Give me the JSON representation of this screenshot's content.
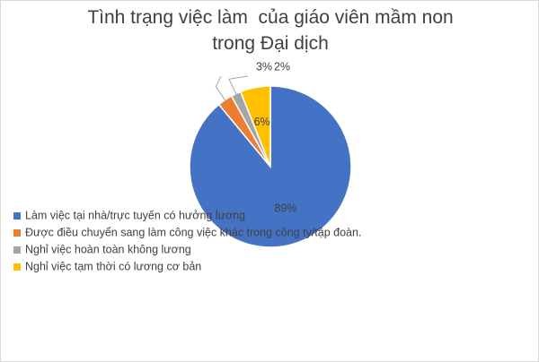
{
  "chart_data": {
    "type": "pie",
    "title": "Tình trạng việc làm  của giáo viên mầm non trong Đại dịch",
    "categories": [
      "Làm việc tại nhà/trực tuyến có hưởng lương",
      "Được điều chuyển sang làm công việc khác trong công ty/tập đoàn.",
      "Nghỉ việc hoàn toàn không lương",
      "Nghỉ việc tạm thời có lương cơ bản"
    ],
    "values": [
      89,
      3,
      2,
      6
    ],
    "value_labels": [
      "89%",
      "3%",
      "2%",
      "6%"
    ],
    "colors": [
      "#4472c4",
      "#ed7d31",
      "#a5a5a5",
      "#ffc000"
    ],
    "legend": "left"
  }
}
